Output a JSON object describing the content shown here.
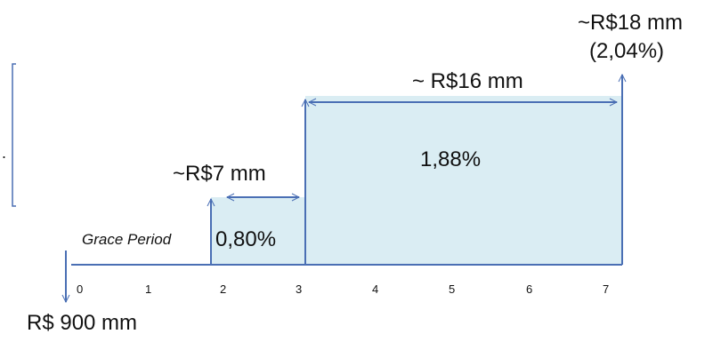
{
  "colors": {
    "arrow": "#4a6fb4",
    "fill": "#daedf3",
    "axis": "#4a6fb4"
  },
  "timeline": {
    "ticks": [
      "0",
      "1",
      "2",
      "3",
      "4",
      "5",
      "6",
      "7"
    ],
    "initial_amount": "R$ 900 mm",
    "grace_period": "Grace Period"
  },
  "blocks": [
    {
      "rate": "0,80%",
      "amount": "~R$7 mm"
    },
    {
      "rate": "1,88%",
      "amount": "~ R$16 mm"
    }
  ],
  "final": {
    "amount": "~R$18 mm",
    "rate": "(2,04%)"
  },
  "side_marker": "."
}
